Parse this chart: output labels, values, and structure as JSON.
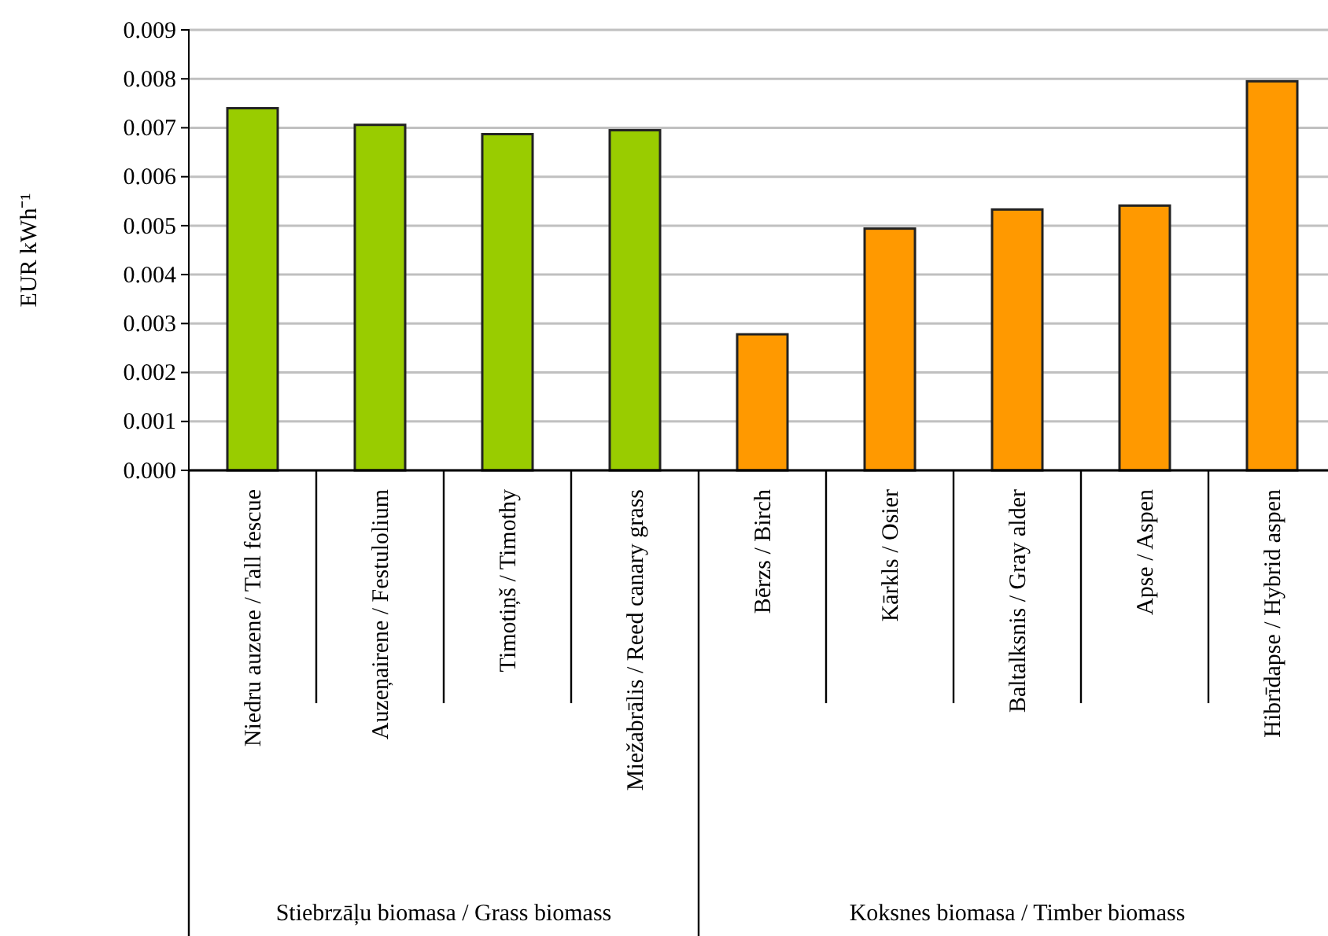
{
  "chart_data": {
    "type": "bar",
    "ylabel": "EUR kWh⁻¹",
    "categories": [
      "Niedru auzene / Tall fescue",
      "Auzeņairene / Festulolium",
      "Timotiņš / Timothy",
      "Miežabrālis / Reed canary grass",
      "Bērzs / Birch",
      "Kārkls / Osier",
      "Baltalksnis / Gray alder",
      "Apse / Aspen",
      "Hibrīdapse / Hybrid aspen"
    ],
    "values": [
      0.0074,
      0.00706,
      0.00687,
      0.00695,
      0.00278,
      0.00494,
      0.00533,
      0.00541,
      0.00795
    ],
    "colors": [
      "#99cc00",
      "#99cc00",
      "#99cc00",
      "#99cc00",
      "#ff9900",
      "#ff9900",
      "#ff9900",
      "#ff9900",
      "#ff9900"
    ],
    "ylim": [
      0,
      0.009
    ],
    "yticks": [
      {
        "value": 0,
        "label": "0.000"
      },
      {
        "value": 0.001,
        "label": "0.001"
      },
      {
        "value": 0.002,
        "label": "0.002"
      },
      {
        "value": 0.003,
        "label": "0.003"
      },
      {
        "value": 0.004,
        "label": "0.004"
      },
      {
        "value": 0.005,
        "label": "0.005"
      },
      {
        "value": 0.006,
        "label": "0.006"
      },
      {
        "value": 0.007,
        "label": "0.007"
      },
      {
        "value": 0.008,
        "label": "0.008"
      },
      {
        "value": 0.009,
        "label": "0.009"
      }
    ],
    "grid": "y",
    "annotations": [
      "Stiebrzāļu biomasa / Grass biomass",
      "Koksnes biomasa / Timber biomass"
    ]
  }
}
